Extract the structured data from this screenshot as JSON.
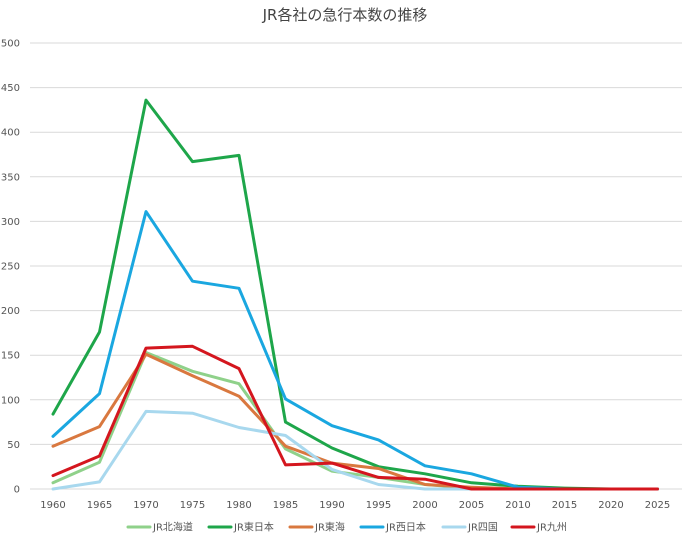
{
  "chart_data": {
    "type": "line",
    "title": "JR各社の急行本数の推移",
    "xlabel": "",
    "ylabel": "",
    "x": [
      1960,
      1965,
      1970,
      1975,
      1980,
      1985,
      1990,
      1995,
      2000,
      2005,
      2010,
      2015,
      2020,
      2025
    ],
    "ylim": [
      0,
      500
    ],
    "yticks": [
      0,
      50,
      100,
      150,
      200,
      250,
      300,
      350,
      400,
      450,
      500
    ],
    "grid": true,
    "legend_position": "bottom",
    "series": [
      {
        "name": "JR北海道",
        "color": "#8fd18a",
        "values": [
          7,
          30,
          153,
          132,
          118,
          45,
          20,
          13,
          5,
          1,
          0,
          0,
          0,
          0
        ]
      },
      {
        "name": "JR東日本",
        "color": "#1ea64a",
        "values": [
          84,
          176,
          436,
          367,
          374,
          75,
          46,
          25,
          17,
          7,
          3,
          1,
          0,
          0
        ]
      },
      {
        "name": "JR東海",
        "color": "#d9783f",
        "values": [
          48,
          70,
          151,
          127,
          104,
          48,
          29,
          23,
          5,
          2,
          0,
          0,
          0,
          0
        ]
      },
      {
        "name": "JR西日本",
        "color": "#1aa7e0",
        "values": [
          59,
          107,
          311,
          233,
          225,
          101,
          71,
          55,
          26,
          17,
          2,
          0,
          0,
          0
        ]
      },
      {
        "name": "JR四国",
        "color": "#a8d8ee",
        "values": [
          0,
          8,
          87,
          85,
          69,
          60,
          22,
          5,
          0,
          0,
          0,
          0,
          0,
          0
        ]
      },
      {
        "name": "JR九州",
        "color": "#d4161e",
        "values": [
          15,
          37,
          158,
          160,
          135,
          27,
          29,
          13,
          11,
          0,
          0,
          0,
          0,
          0
        ]
      }
    ]
  }
}
